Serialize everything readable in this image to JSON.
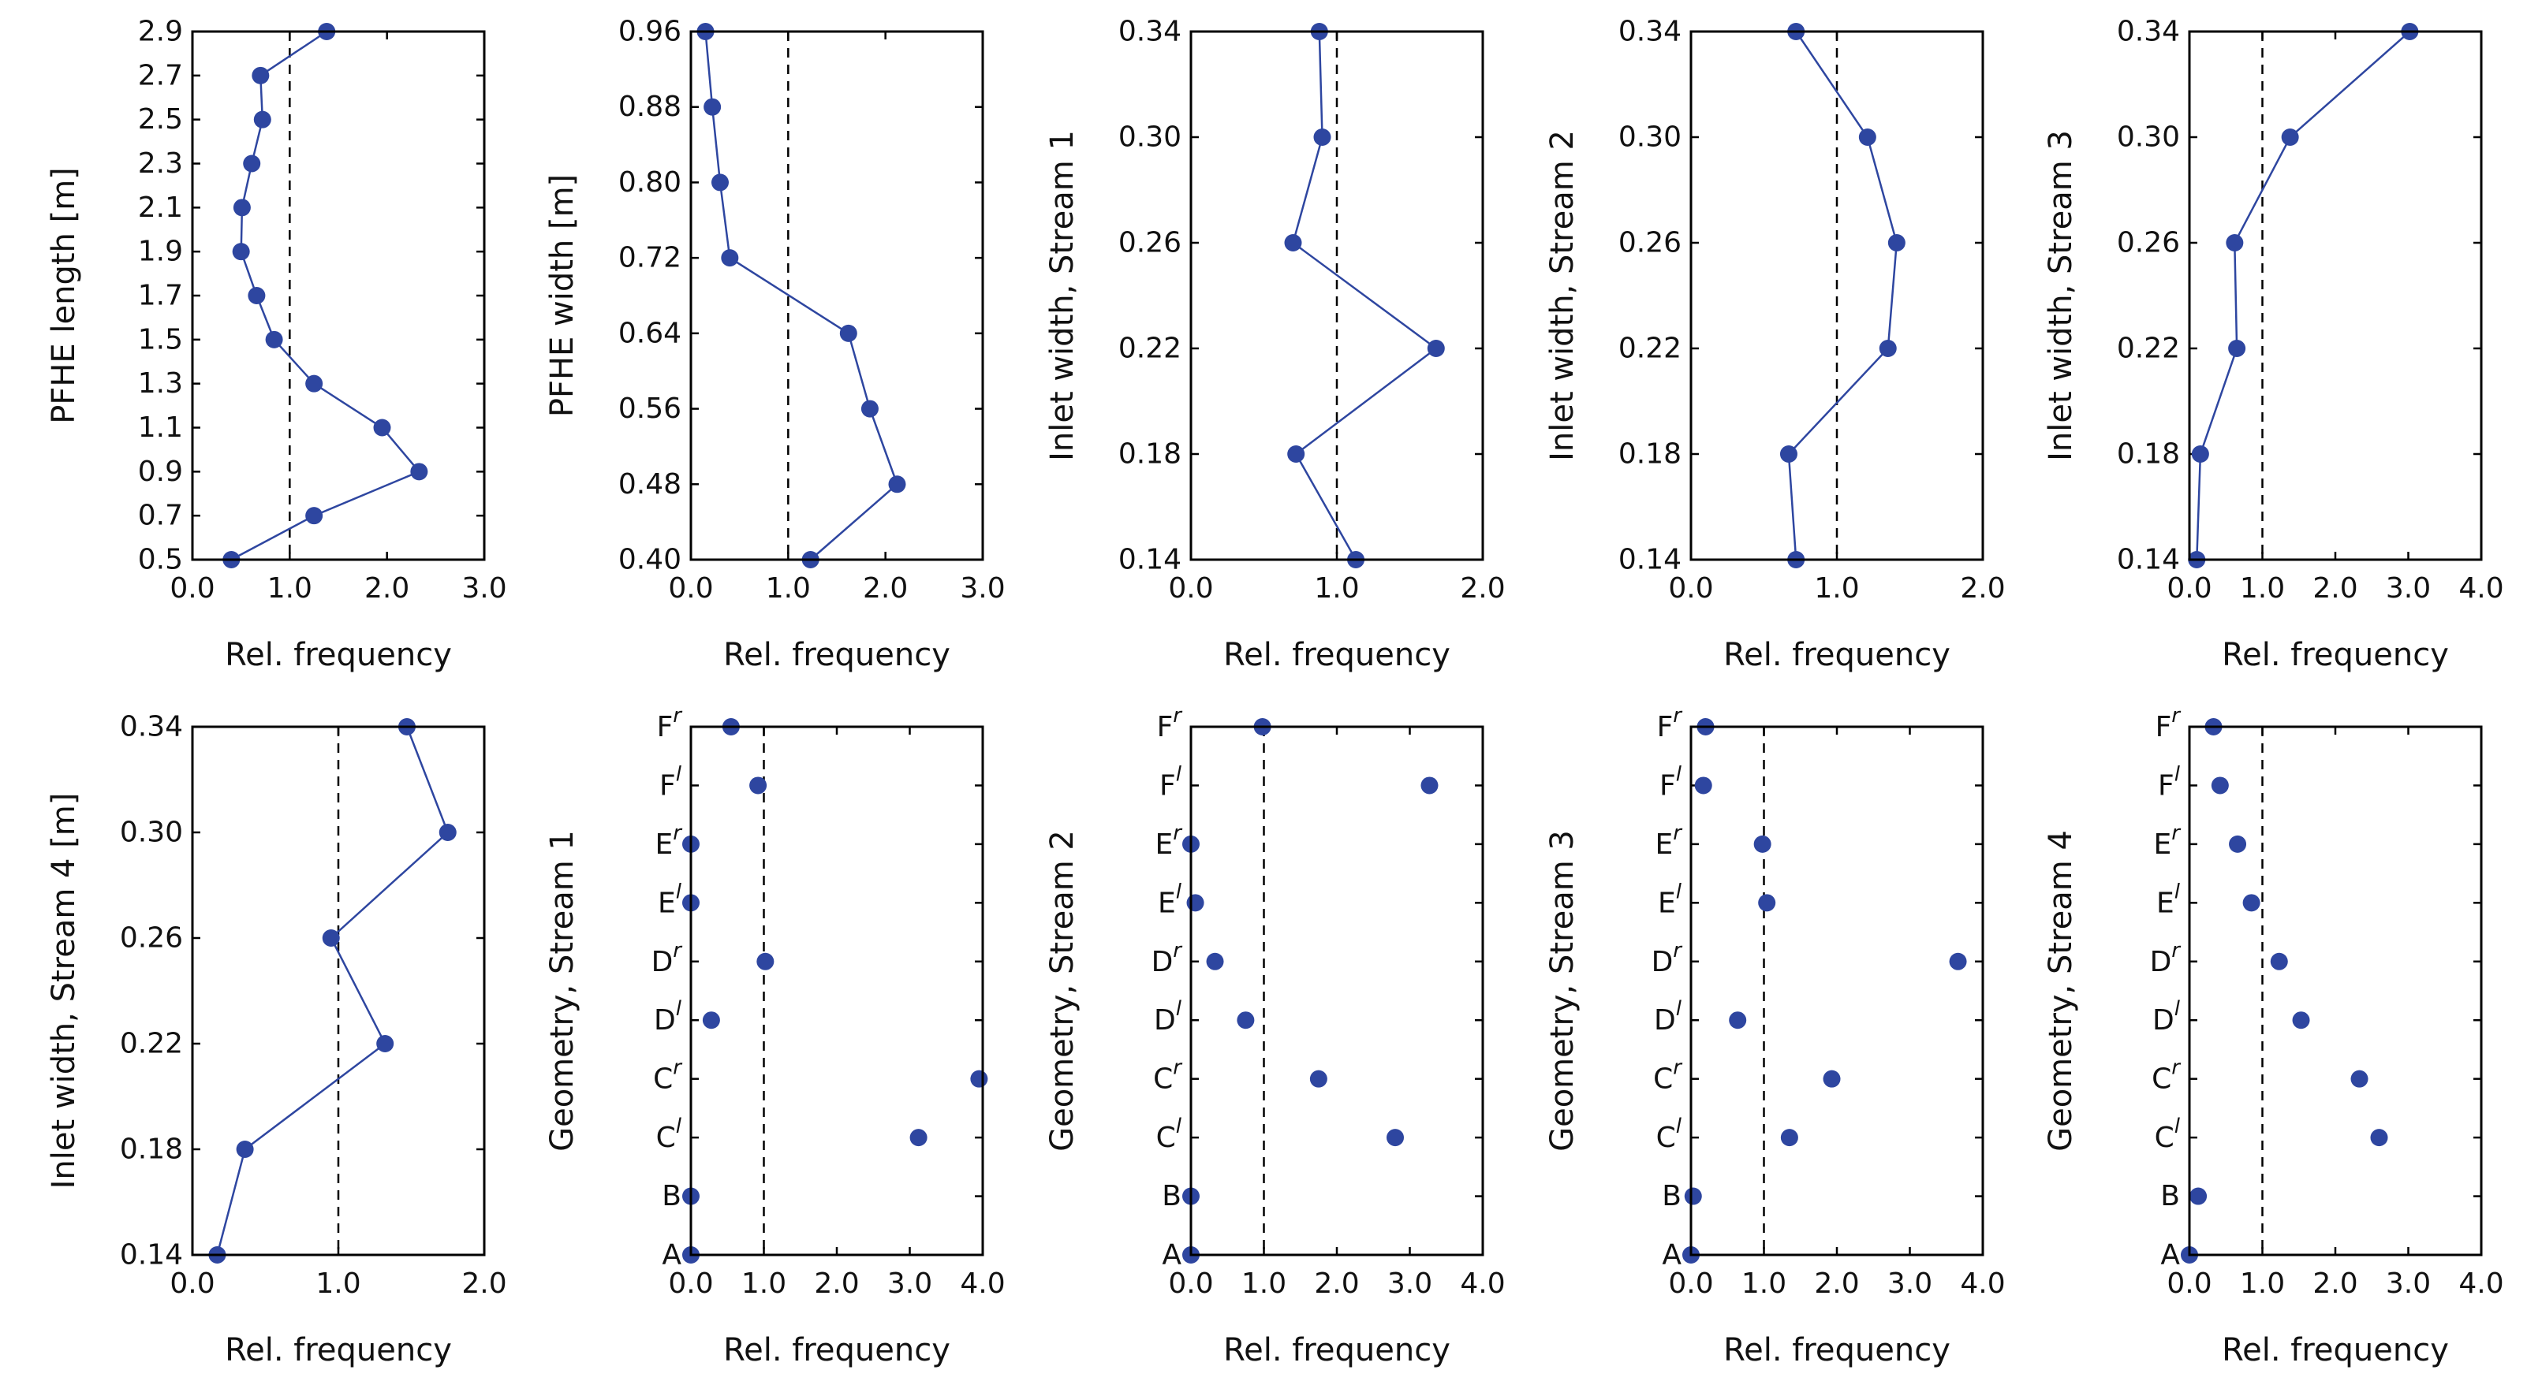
{
  "colors": {
    "series": "#2e46a0",
    "axis": "#000000",
    "reference": "#000000"
  },
  "chart_data": [
    {
      "type": "line",
      "xlabel": "Rel. frequency",
      "ylabel": "PFHE length [m]",
      "xlim": [
        0,
        3
      ],
      "xticks": [
        0,
        1,
        2,
        3
      ],
      "xtick_labels": [
        "0.0",
        "1.0",
        "2.0",
        "3.0"
      ],
      "ylim": [
        0.5,
        2.9
      ],
      "yticks": [
        0.5,
        0.7,
        0.9,
        1.1,
        1.3,
        1.5,
        1.7,
        1.9,
        2.1,
        2.3,
        2.5,
        2.7,
        2.9
      ],
      "ytick_labels": [
        "0.5",
        "0.7",
        "0.9",
        "1.1",
        "1.3",
        "1.5",
        "1.7",
        "1.9",
        "2.1",
        "2.3",
        "2.5",
        "2.7",
        "2.9"
      ],
      "reference_x": 1.0,
      "points": [
        [
          0.4,
          0.5
        ],
        [
          1.25,
          0.7
        ],
        [
          2.33,
          0.9
        ],
        [
          1.95,
          1.1
        ],
        [
          1.25,
          1.3
        ],
        [
          0.84,
          1.5
        ],
        [
          0.66,
          1.7
        ],
        [
          0.5,
          1.9
        ],
        [
          0.51,
          2.1
        ],
        [
          0.61,
          2.3
        ],
        [
          0.72,
          2.5
        ],
        [
          0.7,
          2.7
        ],
        [
          1.38,
          2.9
        ]
      ]
    },
    {
      "type": "line",
      "xlabel": "Rel. frequency",
      "ylabel": "PFHE width [m]",
      "xlim": [
        0,
        3
      ],
      "xticks": [
        0,
        1,
        2,
        3
      ],
      "xtick_labels": [
        "0.0",
        "1.0",
        "2.0",
        "3.0"
      ],
      "ylim": [
        0.4,
        0.96
      ],
      "yticks": [
        0.4,
        0.48,
        0.56,
        0.64,
        0.72,
        0.8,
        0.88,
        0.96
      ],
      "ytick_labels": [
        "0.40",
        "0.48",
        "0.56",
        "0.64",
        "0.72",
        "0.80",
        "0.88",
        "0.96"
      ],
      "reference_x": 1.0,
      "points": [
        [
          1.23,
          0.4
        ],
        [
          2.12,
          0.48
        ],
        [
          1.84,
          0.56
        ],
        [
          1.62,
          0.64
        ],
        [
          0.4,
          0.72
        ],
        [
          0.3,
          0.8
        ],
        [
          0.22,
          0.88
        ],
        [
          0.15,
          0.96
        ]
      ]
    },
    {
      "type": "line",
      "xlabel": "Rel. frequency",
      "ylabel": "Inlet width, Stream 1",
      "xlim": [
        0,
        2
      ],
      "xticks": [
        0,
        1,
        2
      ],
      "xtick_labels": [
        "0.0",
        "1.0",
        "2.0"
      ],
      "ylim": [
        0.14,
        0.34
      ],
      "yticks": [
        0.14,
        0.18,
        0.22,
        0.26,
        0.3,
        0.34
      ],
      "ytick_labels": [
        "0.14",
        "0.18",
        "0.22",
        "0.26",
        "0.30",
        "0.34"
      ],
      "reference_x": 1.0,
      "points": [
        [
          1.13,
          0.14
        ],
        [
          0.72,
          0.18
        ],
        [
          1.68,
          0.22
        ],
        [
          0.7,
          0.26
        ],
        [
          0.9,
          0.3
        ],
        [
          0.88,
          0.34
        ]
      ]
    },
    {
      "type": "line",
      "xlabel": "Rel. frequency",
      "ylabel": "Inlet width, Stream 2",
      "xlim": [
        0,
        2
      ],
      "xticks": [
        0,
        1,
        2
      ],
      "xtick_labels": [
        "0.0",
        "1.0",
        "2.0"
      ],
      "ylim": [
        0.14,
        0.34
      ],
      "yticks": [
        0.14,
        0.18,
        0.22,
        0.26,
        0.3,
        0.34
      ],
      "ytick_labels": [
        "0.14",
        "0.18",
        "0.22",
        "0.26",
        "0.30",
        "0.34"
      ],
      "reference_x": 1.0,
      "points": [
        [
          0.72,
          0.14
        ],
        [
          0.67,
          0.18
        ],
        [
          1.35,
          0.22
        ],
        [
          1.41,
          0.26
        ],
        [
          1.21,
          0.3
        ],
        [
          0.72,
          0.34
        ]
      ]
    },
    {
      "type": "line",
      "xlabel": "Rel. frequency",
      "ylabel": "Inlet width, Stream 3",
      "xlim": [
        0,
        4
      ],
      "xticks": [
        0,
        1,
        2,
        3,
        4
      ],
      "xtick_labels": [
        "0.0",
        "1.0",
        "2.0",
        "3.0",
        "4.0"
      ],
      "ylim": [
        0.14,
        0.34
      ],
      "yticks": [
        0.14,
        0.18,
        0.22,
        0.26,
        0.3,
        0.34
      ],
      "ytick_labels": [
        "0.14",
        "0.18",
        "0.22",
        "0.26",
        "0.30",
        "0.34"
      ],
      "reference_x": 1.0,
      "points": [
        [
          0.1,
          0.14
        ],
        [
          0.15,
          0.18
        ],
        [
          0.65,
          0.22
        ],
        [
          0.62,
          0.26
        ],
        [
          1.38,
          0.3
        ],
        [
          3.02,
          0.34
        ]
      ]
    },
    {
      "type": "line",
      "xlabel": "Rel. frequency",
      "ylabel": "Inlet width, Stream 4 [m]",
      "xlim": [
        0,
        2
      ],
      "xticks": [
        0,
        1,
        2
      ],
      "xtick_labels": [
        "0.0",
        "1.0",
        "2.0"
      ],
      "ylim": [
        0.14,
        0.34
      ],
      "yticks": [
        0.14,
        0.18,
        0.22,
        0.26,
        0.3,
        0.34
      ],
      "ytick_labels": [
        "0.14",
        "0.18",
        "0.22",
        "0.26",
        "0.30",
        "0.34"
      ],
      "reference_x": 1.0,
      "points": [
        [
          0.17,
          0.14
        ],
        [
          0.36,
          0.18
        ],
        [
          1.32,
          0.22
        ],
        [
          0.95,
          0.26
        ],
        [
          1.75,
          0.3
        ],
        [
          1.47,
          0.34
        ]
      ]
    },
    {
      "type": "scatter",
      "xlabel": "Rel. frequency",
      "ylabel": "Geometry, Stream 1",
      "xlim": [
        0,
        4
      ],
      "xticks": [
        0,
        1,
        2,
        3,
        4
      ],
      "xtick_labels": [
        "0.0",
        "1.0",
        "2.0",
        "3.0",
        "4.0"
      ],
      "categories": [
        "A",
        "B",
        "Cl",
        "Cr",
        "Dl",
        "Dr",
        "El",
        "Er",
        "Fl",
        "Fr"
      ],
      "reference_x": 1.0,
      "values": [
        0.0,
        0.0,
        3.12,
        3.95,
        0.28,
        1.02,
        0.0,
        0.0,
        0.92,
        0.55
      ]
    },
    {
      "type": "scatter",
      "xlabel": "Rel. frequency",
      "ylabel": "Geometry, Stream 2",
      "xlim": [
        0,
        4
      ],
      "xticks": [
        0,
        1,
        2,
        3,
        4
      ],
      "xtick_labels": [
        "0.0",
        "1.0",
        "2.0",
        "3.0",
        "4.0"
      ],
      "categories": [
        "A",
        "B",
        "Cl",
        "Cr",
        "Dl",
        "Dr",
        "El",
        "Er",
        "Fl",
        "Fr"
      ],
      "reference_x": 1.0,
      "values": [
        0.0,
        0.0,
        2.8,
        1.75,
        0.75,
        0.33,
        0.06,
        0.0,
        3.27,
        0.98
      ]
    },
    {
      "type": "scatter",
      "xlabel": "Rel. frequency",
      "ylabel": "Geometry, Stream 3",
      "xlim": [
        0,
        4
      ],
      "xticks": [
        0,
        1,
        2,
        3,
        4
      ],
      "xtick_labels": [
        "0.0",
        "1.0",
        "2.0",
        "3.0",
        "4.0"
      ],
      "categories": [
        "A",
        "B",
        "Cl",
        "Cr",
        "Dl",
        "Dr",
        "El",
        "Er",
        "Fl",
        "Fr"
      ],
      "reference_x": 1.0,
      "values": [
        0.0,
        0.03,
        1.35,
        1.93,
        0.64,
        3.66,
        1.04,
        0.98,
        0.17,
        0.2
      ]
    },
    {
      "type": "scatter",
      "xlabel": "Rel. frequency",
      "ylabel": "Geometry, Stream 4",
      "xlim": [
        0,
        4
      ],
      "xticks": [
        0,
        1,
        2,
        3,
        4
      ],
      "xtick_labels": [
        "0.0",
        "1.0",
        "2.0",
        "3.0",
        "4.0"
      ],
      "categories": [
        "A",
        "B",
        "Cl",
        "Cr",
        "Dl",
        "Dr",
        "El",
        "Er",
        "Fl",
        "Fr"
      ],
      "reference_x": 1.0,
      "values": [
        0.0,
        0.12,
        2.6,
        2.33,
        1.53,
        1.23,
        0.85,
        0.66,
        0.42,
        0.33
      ]
    }
  ]
}
